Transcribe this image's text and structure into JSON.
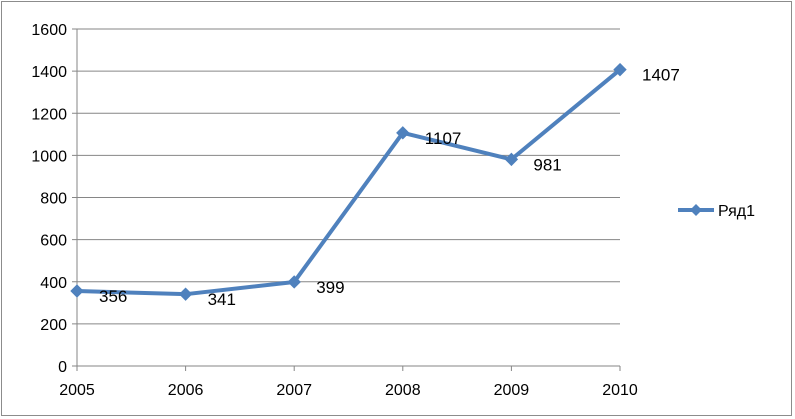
{
  "chart_data": {
    "type": "line",
    "categories": [
      "2005",
      "2006",
      "2007",
      "2008",
      "2009",
      "2010"
    ],
    "series": [
      {
        "name": "Ряд1",
        "values": [
          356,
          341,
          399,
          1107,
          981,
          1407
        ],
        "color": "#4f81bd"
      }
    ],
    "data_labels": [
      "356",
      "341",
      "399",
      "1107",
      "981",
      "1407"
    ],
    "ylim": [
      0,
      1600
    ],
    "yticks": [
      "0",
      "200",
      "400",
      "600",
      "800",
      "1000",
      "1200",
      "1400",
      "1600"
    ],
    "grid": true,
    "legend_position": "right",
    "marker": "diamond"
  }
}
